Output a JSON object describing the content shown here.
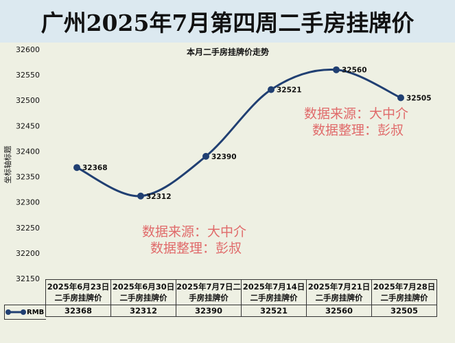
{
  "title": "广州2025年7月第四周二手房挂牌价",
  "watermark": {
    "line1": "数据来源：大中介",
    "line2": "数据整理：彭叔"
  },
  "chart_data": {
    "type": "line",
    "title": "本月二手房挂牌价走势",
    "ylabel": "坐标轴标题",
    "ylim": [
      32150,
      32600
    ],
    "yticks": [
      32150,
      32200,
      32250,
      32300,
      32350,
      32400,
      32450,
      32500,
      32550,
      32600
    ],
    "categories": [
      "2025年6月23日二手房挂牌价",
      "2025年6月30日二手房挂牌价",
      "2025年7月7日二手房挂牌价",
      "2025年7月14日二手房挂牌价",
      "2025年7月21日二手房挂牌价",
      "2025年7月28日二手房挂牌价"
    ],
    "series": [
      {
        "name": "RMB",
        "values": [
          32368,
          32312,
          32390,
          32521,
          32560,
          32505
        ]
      }
    ],
    "color": "#203f72",
    "smooth": true,
    "grid": false,
    "data_table": true
  }
}
